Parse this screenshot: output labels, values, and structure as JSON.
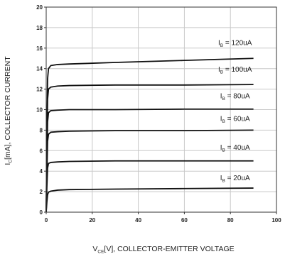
{
  "chart_data": {
    "type": "line",
    "title": "",
    "xlabel": {
      "main": "V",
      "sub": "CE",
      "rest": "[V], COLLECTOR-EMITTER VOLTAGE"
    },
    "ylabel": {
      "main": "I",
      "sub": "C",
      "rest": "[mA], COLLECTOR CURRENT"
    },
    "xlim": [
      0,
      100
    ],
    "ylim": [
      0,
      20
    ],
    "x_ticks": [
      0,
      20,
      40,
      60,
      80,
      100
    ],
    "y_ticks": [
      0,
      2,
      4,
      6,
      8,
      10,
      12,
      14,
      16,
      18,
      20
    ],
    "grid": true,
    "series": [
      {
        "name": {
          "main": "I",
          "sub": "B",
          "rest": " = 20uA"
        },
        "x": [
          0,
          0.3,
          0.6,
          1,
          2,
          5,
          10,
          30,
          60,
          90
        ],
        "y": [
          0,
          1.0,
          1.7,
          1.95,
          2.05,
          2.15,
          2.2,
          2.25,
          2.3,
          2.35
        ]
      },
      {
        "name": {
          "main": "I",
          "sub": "B",
          "rest": " = 40uA"
        },
        "x": [
          0,
          0.3,
          0.6,
          1,
          2,
          5,
          10,
          30,
          60,
          90
        ],
        "y": [
          0,
          2.5,
          4.3,
          4.75,
          4.85,
          4.9,
          4.95,
          5.0,
          5.0,
          5.0
        ]
      },
      {
        "name": {
          "main": "I",
          "sub": "B",
          "rest": " = 60uA"
        },
        "x": [
          0,
          0.3,
          0.6,
          1,
          2,
          5,
          10,
          30,
          60,
          90
        ],
        "y": [
          0,
          3.8,
          6.9,
          7.6,
          7.8,
          7.85,
          7.9,
          7.95,
          7.95,
          8.0
        ]
      },
      {
        "name": {
          "main": "I",
          "sub": "B",
          "rest": " = 80uA"
        },
        "x": [
          0,
          0.3,
          0.6,
          1,
          2,
          5,
          10,
          30,
          60,
          90
        ],
        "y": [
          0,
          5.0,
          8.8,
          9.7,
          9.9,
          9.95,
          10.0,
          10.0,
          10.05,
          10.05
        ]
      },
      {
        "name": {
          "main": "I",
          "sub": "B",
          "rest": " = 100uA"
        },
        "x": [
          0,
          0.3,
          0.6,
          1,
          2,
          5,
          10,
          30,
          60,
          90
        ],
        "y": [
          0,
          6.2,
          11.0,
          12.0,
          12.2,
          12.3,
          12.35,
          12.4,
          12.4,
          12.45
        ]
      },
      {
        "name": {
          "main": "I",
          "sub": "B",
          "rest": " = 120uA"
        },
        "x": [
          0,
          0.3,
          0.6,
          1,
          2,
          5,
          10,
          30,
          60,
          90
        ],
        "y": [
          0,
          7.5,
          13.0,
          14.0,
          14.3,
          14.4,
          14.45,
          14.6,
          14.8,
          15.0
        ]
      }
    ],
    "labels": [
      {
        "series": 5,
        "at_x": 82,
        "at_y": 16.3
      },
      {
        "series": 4,
        "at_x": 82,
        "at_y": 13.7
      },
      {
        "series": 3,
        "at_x": 82,
        "at_y": 11.1
      },
      {
        "series": 2,
        "at_x": 82,
        "at_y": 8.9
      },
      {
        "series": 1,
        "at_x": 82,
        "at_y": 6.1
      },
      {
        "series": 0,
        "at_x": 82,
        "at_y": 3.1
      }
    ],
    "colors": {
      "line": "#111111",
      "grid": "#c8c8c8",
      "frame": "#333333",
      "text": "#222222"
    }
  }
}
